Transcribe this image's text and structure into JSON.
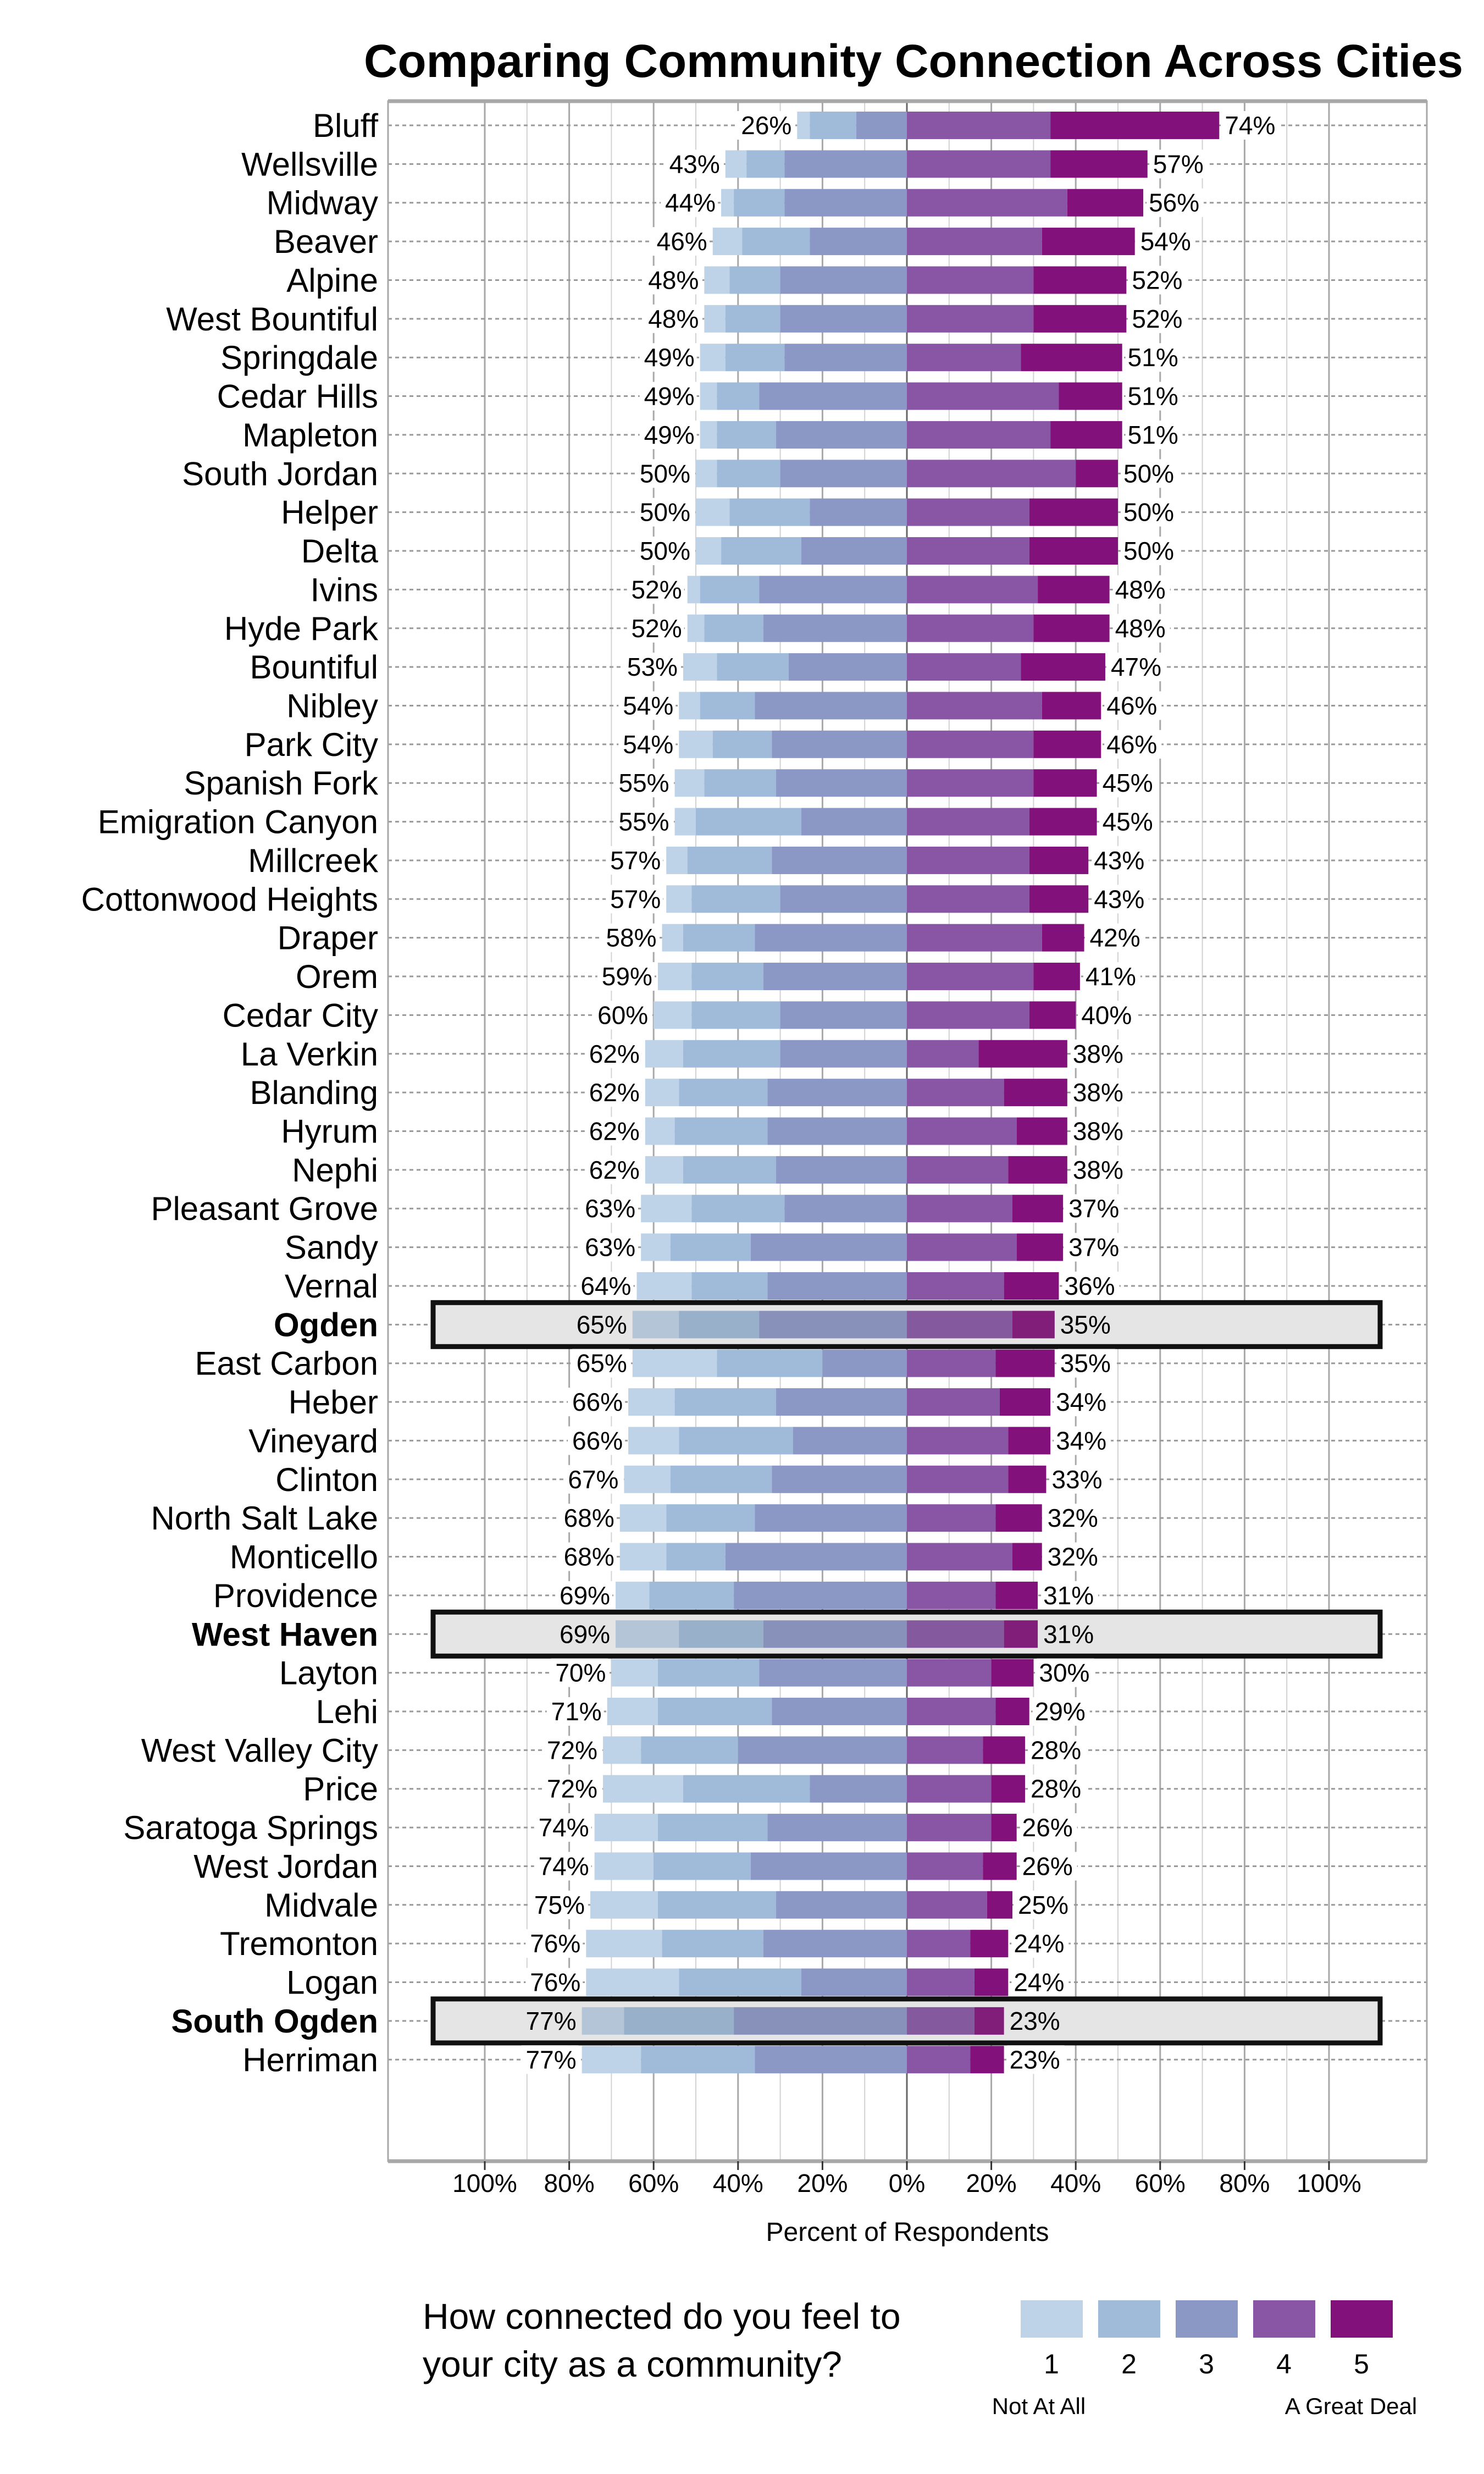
{
  "chart_data": {
    "type": "bar",
    "orientation": "horizontal",
    "stacking": "diverging",
    "title": "Comparing Community Connection Across Cities",
    "xlabel": "Percent of Respondents",
    "ylabel": "",
    "xlim": [
      -100,
      100
    ],
    "x_tick_labels": [
      "100%",
      "80%",
      "60%",
      "40%",
      "20%",
      "0%",
      "20%",
      "40%",
      "60%",
      "80%",
      "100%"
    ],
    "grid": true,
    "legend": {
      "title_lines": [
        "How connected do you feel to",
        "your city as a community?"
      ],
      "placement": "bottom",
      "entries": [
        "1",
        "2",
        "3",
        "4",
        "5"
      ],
      "low_anchor": "Not At All",
      "high_anchor": "A Great Deal"
    },
    "series_colors": [
      "#bed3e7",
      "#9fbbd9",
      "#8b97c5",
      "#8956a6",
      "#83117b"
    ],
    "highlight_color": "#e5e5e5",
    "rows": [
      {
        "city": "Bluff",
        "values": [
          3,
          11,
          12,
          34,
          40
        ],
        "neg_total": "26%",
        "pos_total": "74%",
        "highlight": false
      },
      {
        "city": "Wellsville",
        "values": [
          5,
          9,
          29,
          34,
          23
        ],
        "neg_total": "43%",
        "pos_total": "57%",
        "highlight": false
      },
      {
        "city": "Midway",
        "values": [
          3,
          12,
          29,
          38,
          18
        ],
        "neg_total": "44%",
        "pos_total": "56%",
        "highlight": false
      },
      {
        "city": "Beaver",
        "values": [
          7,
          16,
          23,
          32,
          22
        ],
        "neg_total": "46%",
        "pos_total": "54%",
        "highlight": false
      },
      {
        "city": "Alpine",
        "values": [
          6,
          12,
          30,
          30,
          22
        ],
        "neg_total": "48%",
        "pos_total": "52%",
        "highlight": false
      },
      {
        "city": "West Bountiful",
        "values": [
          5,
          13,
          30,
          30,
          22
        ],
        "neg_total": "48%",
        "pos_total": "52%",
        "highlight": false
      },
      {
        "city": "Springdale",
        "values": [
          6,
          14,
          29,
          27,
          24
        ],
        "neg_total": "49%",
        "pos_total": "51%",
        "highlight": false
      },
      {
        "city": "Cedar Hills",
        "values": [
          4,
          10,
          35,
          36,
          15
        ],
        "neg_total": "49%",
        "pos_total": "51%",
        "highlight": false
      },
      {
        "city": "Mapleton",
        "values": [
          4,
          14,
          31,
          34,
          17
        ],
        "neg_total": "49%",
        "pos_total": "51%",
        "highlight": false
      },
      {
        "city": "South Jordan",
        "values": [
          5,
          15,
          30,
          40,
          10
        ],
        "neg_total": "50%",
        "pos_total": "50%",
        "highlight": false
      },
      {
        "city": "Helper",
        "values": [
          8,
          19,
          23,
          29,
          21
        ],
        "neg_total": "50%",
        "pos_total": "50%",
        "highlight": false
      },
      {
        "city": "Delta",
        "values": [
          6,
          19,
          25,
          29,
          21
        ],
        "neg_total": "50%",
        "pos_total": "50%",
        "highlight": false
      },
      {
        "city": "Ivins",
        "values": [
          3,
          14,
          35,
          31,
          17
        ],
        "neg_total": "52%",
        "pos_total": "48%",
        "highlight": false
      },
      {
        "city": "Hyde Park",
        "values": [
          4,
          14,
          34,
          30,
          18
        ],
        "neg_total": "52%",
        "pos_total": "48%",
        "highlight": false
      },
      {
        "city": "Bountiful",
        "values": [
          8,
          17,
          28,
          27,
          20
        ],
        "neg_total": "53%",
        "pos_total": "47%",
        "highlight": false
      },
      {
        "city": "Nibley",
        "values": [
          5,
          13,
          36,
          32,
          14
        ],
        "neg_total": "54%",
        "pos_total": "46%",
        "highlight": false
      },
      {
        "city": "Park City",
        "values": [
          8,
          14,
          32,
          30,
          16
        ],
        "neg_total": "54%",
        "pos_total": "46%",
        "highlight": false
      },
      {
        "city": "Spanish Fork",
        "values": [
          7,
          17,
          31,
          30,
          15
        ],
        "neg_total": "55%",
        "pos_total": "45%",
        "highlight": false
      },
      {
        "city": "Emigration Canyon",
        "values": [
          5,
          25,
          25,
          29,
          16
        ],
        "neg_total": "55%",
        "pos_total": "45%",
        "highlight": false
      },
      {
        "city": "Millcreek",
        "values": [
          5,
          20,
          32,
          29,
          14
        ],
        "neg_total": "57%",
        "pos_total": "43%",
        "highlight": false
      },
      {
        "city": "Cottonwood Heights",
        "values": [
          6,
          21,
          30,
          29,
          14
        ],
        "neg_total": "57%",
        "pos_total": "43%",
        "highlight": false
      },
      {
        "city": "Draper",
        "values": [
          5,
          17,
          36,
          32,
          10
        ],
        "neg_total": "58%",
        "pos_total": "42%",
        "highlight": false
      },
      {
        "city": "Orem",
        "values": [
          8,
          17,
          34,
          30,
          11
        ],
        "neg_total": "59%",
        "pos_total": "41%",
        "highlight": false
      },
      {
        "city": "Cedar City",
        "values": [
          9,
          21,
          30,
          29,
          11
        ],
        "neg_total": "60%",
        "pos_total": "40%",
        "highlight": false
      },
      {
        "city": "La Verkin",
        "values": [
          9,
          23,
          30,
          17,
          21
        ],
        "neg_total": "62%",
        "pos_total": "38%",
        "highlight": false
      },
      {
        "city": "Blanding",
        "values": [
          8,
          21,
          33,
          23,
          15
        ],
        "neg_total": "62%",
        "pos_total": "38%",
        "highlight": false
      },
      {
        "city": "Hyrum",
        "values": [
          7,
          22,
          33,
          26,
          12
        ],
        "neg_total": "62%",
        "pos_total": "38%",
        "highlight": false
      },
      {
        "city": "Nephi",
        "values": [
          9,
          22,
          31,
          24,
          14
        ],
        "neg_total": "62%",
        "pos_total": "38%",
        "highlight": false
      },
      {
        "city": "Pleasant Grove",
        "values": [
          12,
          22,
          29,
          25,
          12
        ],
        "neg_total": "63%",
        "pos_total": "37%",
        "highlight": false
      },
      {
        "city": "Sandy",
        "values": [
          7,
          19,
          37,
          26,
          11
        ],
        "neg_total": "63%",
        "pos_total": "37%",
        "highlight": false
      },
      {
        "city": "Vernal",
        "values": [
          13,
          18,
          33,
          23,
          13
        ],
        "neg_total": "64%",
        "pos_total": "36%",
        "highlight": false
      },
      {
        "city": "Ogden",
        "values": [
          11,
          19,
          35,
          25,
          10
        ],
        "neg_total": "65%",
        "pos_total": "35%",
        "highlight": true
      },
      {
        "city": "East Carbon",
        "values": [
          20,
          25,
          20,
          21,
          14
        ],
        "neg_total": "65%",
        "pos_total": "35%",
        "highlight": false
      },
      {
        "city": "Heber",
        "values": [
          11,
          24,
          31,
          22,
          12
        ],
        "neg_total": "66%",
        "pos_total": "34%",
        "highlight": false
      },
      {
        "city": "Vineyard",
        "values": [
          12,
          27,
          27,
          24,
          10
        ],
        "neg_total": "66%",
        "pos_total": "34%",
        "highlight": false
      },
      {
        "city": "Clinton",
        "values": [
          11,
          24,
          32,
          24,
          9
        ],
        "neg_total": "67%",
        "pos_total": "33%",
        "highlight": false
      },
      {
        "city": "North Salt Lake",
        "values": [
          11,
          21,
          36,
          21,
          11
        ],
        "neg_total": "68%",
        "pos_total": "32%",
        "highlight": false
      },
      {
        "city": "Monticello",
        "values": [
          11,
          14,
          43,
          25,
          7
        ],
        "neg_total": "68%",
        "pos_total": "32%",
        "highlight": false
      },
      {
        "city": "Providence",
        "values": [
          8,
          20,
          41,
          21,
          10
        ],
        "neg_total": "69%",
        "pos_total": "31%",
        "highlight": false
      },
      {
        "city": "West Haven",
        "values": [
          15,
          20,
          34,
          23,
          8
        ],
        "neg_total": "69%",
        "pos_total": "31%",
        "highlight": true
      },
      {
        "city": "Layton",
        "values": [
          11,
          24,
          35,
          20,
          10
        ],
        "neg_total": "70%",
        "pos_total": "30%",
        "highlight": false
      },
      {
        "city": "Lehi",
        "values": [
          12,
          27,
          32,
          21,
          8
        ],
        "neg_total": "71%",
        "pos_total": "29%",
        "highlight": false
      },
      {
        "city": "West Valley City",
        "values": [
          9,
          23,
          40,
          18,
          10
        ],
        "neg_total": "72%",
        "pos_total": "28%",
        "highlight": false
      },
      {
        "city": "Price",
        "values": [
          19,
          30,
          23,
          20,
          8
        ],
        "neg_total": "72%",
        "pos_total": "28%",
        "highlight": false
      },
      {
        "city": "Saratoga Springs",
        "values": [
          15,
          26,
          33,
          20,
          6
        ],
        "neg_total": "74%",
        "pos_total": "26%",
        "highlight": false
      },
      {
        "city": "West Jordan",
        "values": [
          14,
          23,
          37,
          18,
          8
        ],
        "neg_total": "74%",
        "pos_total": "26%",
        "highlight": false
      },
      {
        "city": "Midvale",
        "values": [
          16,
          28,
          31,
          19,
          6
        ],
        "neg_total": "75%",
        "pos_total": "25%",
        "highlight": false
      },
      {
        "city": "Tremonton",
        "values": [
          18,
          24,
          34,
          15,
          9
        ],
        "neg_total": "76%",
        "pos_total": "24%",
        "highlight": false
      },
      {
        "city": "Logan",
        "values": [
          22,
          29,
          25,
          16,
          8
        ],
        "neg_total": "76%",
        "pos_total": "24%",
        "highlight": false
      },
      {
        "city": "South Ogden",
        "values": [
          10,
          26,
          41,
          16,
          7
        ],
        "neg_total": "77%",
        "pos_total": "23%",
        "highlight": true
      },
      {
        "city": "Herriman",
        "values": [
          14,
          27,
          36,
          15,
          8
        ],
        "neg_total": "77%",
        "pos_total": "23%",
        "highlight": false
      }
    ]
  }
}
